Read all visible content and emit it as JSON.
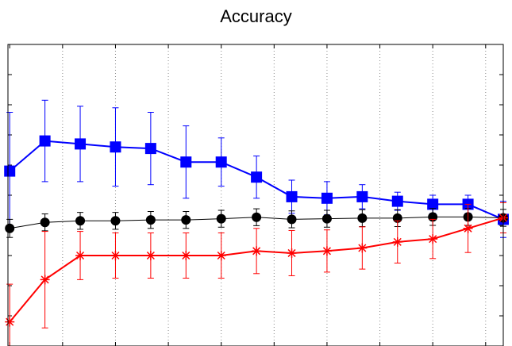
{
  "chart_data": {
    "type": "line",
    "title": "Accuracy",
    "xlabel": "",
    "ylabel": "",
    "x": [
      1,
      2,
      3,
      4,
      5,
      6,
      7,
      8,
      9,
      10,
      11,
      12,
      13,
      14
    ],
    "xlim": [
      0.95,
      15
    ],
    "ylim": [
      0,
      10
    ],
    "x_gridlines": [
      2.5,
      4,
      5.5,
      7,
      8.5,
      10,
      11.5,
      13,
      14.5
    ],
    "x_ticks": [
      1,
      2.5,
      4,
      5.5,
      7,
      8.5,
      10,
      11.5,
      13,
      14.5
    ],
    "y_ticks": [
      1,
      2,
      3,
      4,
      5,
      6,
      7,
      8,
      9,
      10
    ],
    "grid": "vertical",
    "series": [
      {
        "color": "#0000ff",
        "marker": "square",
        "values": [
          5.8,
          6.8,
          6.7,
          6.6,
          6.55,
          6.1,
          6.1,
          5.6,
          4.95,
          4.9,
          4.95,
          4.8,
          4.7,
          4.7,
          4.2
        ],
        "errors": [
          1.95,
          1.35,
          1.25,
          1.3,
          1.2,
          1.2,
          0.8,
          0.7,
          0.55,
          0.55,
          0.4,
          0.3,
          0.3,
          0.3,
          0.6
        ],
        "x": [
          1,
          2,
          3,
          4,
          5,
          6,
          7,
          8,
          9,
          10,
          11,
          12,
          13,
          14,
          15
        ]
      },
      {
        "color": "#000000",
        "marker": "circle",
        "values": [
          3.9,
          4.1,
          4.15,
          4.15,
          4.18,
          4.18,
          4.22,
          4.27,
          4.2,
          4.22,
          4.24,
          4.24,
          4.28,
          4.28,
          4.25
        ],
        "errors": [
          0.3,
          0.28,
          0.28,
          0.28,
          0.28,
          0.28,
          0.28,
          0.28,
          0.28,
          0.28,
          0.28,
          0.28,
          0.28,
          0.28,
          0.28
        ],
        "x": [
          1,
          2,
          3,
          4,
          5,
          6,
          7,
          8,
          9,
          10,
          11,
          12,
          13,
          14,
          15
        ]
      },
      {
        "color": "#ff0000",
        "marker": "asterisk",
        "values": [
          0.8,
          2.2,
          3.0,
          3.0,
          3.0,
          3.0,
          3.0,
          3.15,
          3.08,
          3.15,
          3.25,
          3.45,
          3.55,
          3.9,
          4.25
        ],
        "errors": [
          1.25,
          1.6,
          0.8,
          0.75,
          0.75,
          0.75,
          0.75,
          0.75,
          0.75,
          0.7,
          0.7,
          0.7,
          0.65,
          0.8,
          0.5
        ],
        "x": [
          1,
          2,
          3,
          4,
          5,
          6,
          7,
          8,
          9,
          10,
          11,
          12,
          13,
          14,
          15
        ]
      }
    ]
  }
}
